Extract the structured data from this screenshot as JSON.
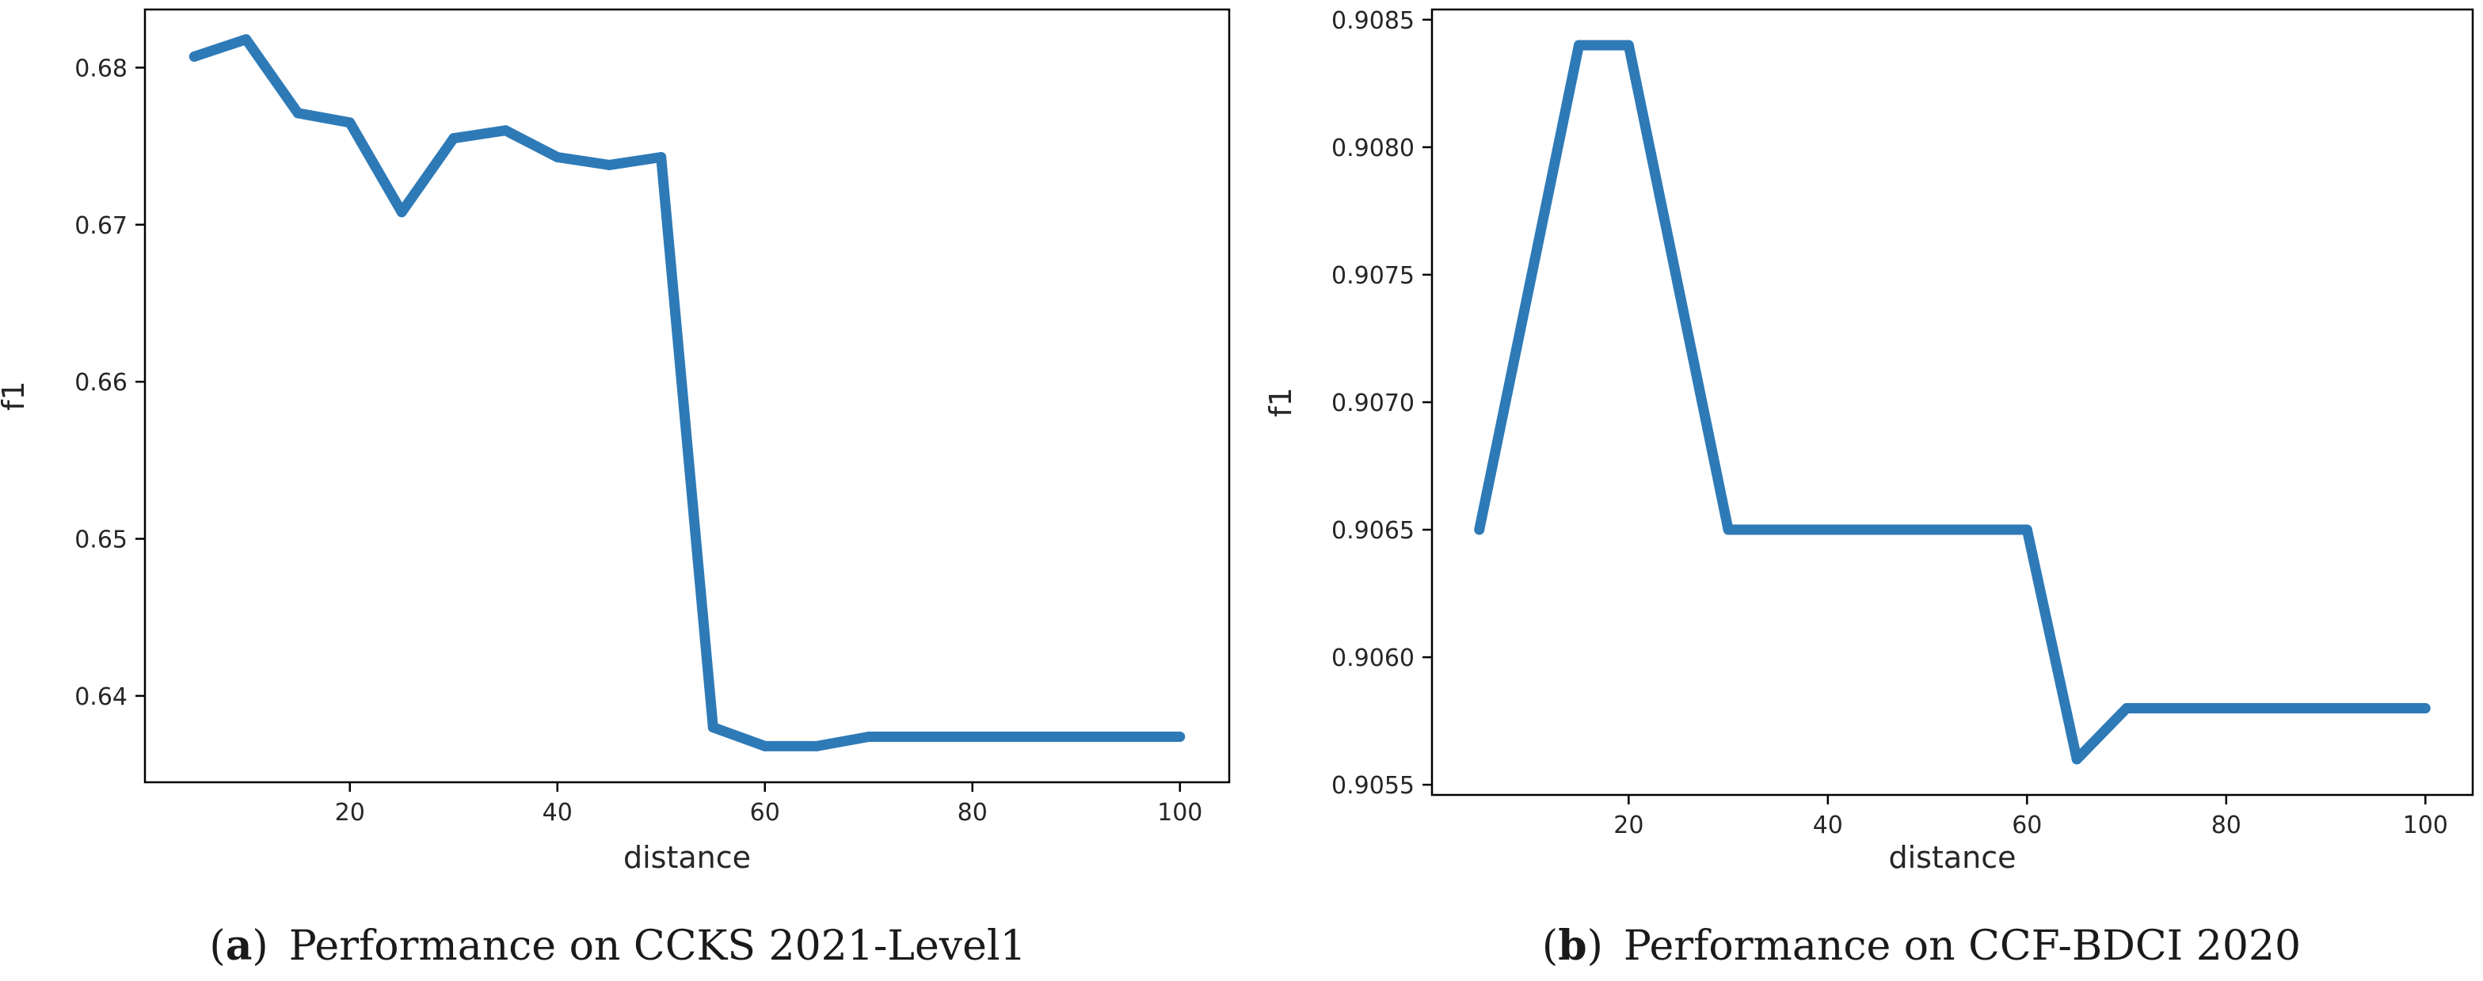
{
  "chart_data": [
    {
      "type": "line",
      "caption_letter": "a",
      "caption_text": "Performance on CCKS 2021-Level1",
      "xlabel": "distance",
      "ylabel": "f1",
      "xlim": [
        0.25,
        104.75
      ],
      "ylim": [
        0.6345,
        0.6837
      ],
      "xticks": [
        20,
        40,
        60,
        80,
        100
      ],
      "yticks": [
        0.64,
        0.65,
        0.66,
        0.67,
        0.68
      ],
      "ytick_labels": [
        "0.64",
        "0.65",
        "0.66",
        "0.67",
        "0.68"
      ],
      "color": "#2e7ab7",
      "grid": false,
      "x": [
        5,
        10,
        15,
        20,
        25,
        30,
        35,
        40,
        45,
        50,
        55,
        60,
        65,
        70,
        75,
        80,
        85,
        90,
        95,
        100
      ],
      "y": [
        0.6807,
        0.6818,
        0.6771,
        0.6765,
        0.6708,
        0.6755,
        0.676,
        0.6743,
        0.6738,
        0.6743,
        0.638,
        0.6368,
        0.6368,
        0.6374,
        0.6374,
        0.6374,
        0.6374,
        0.6374,
        0.6374,
        0.6374
      ]
    },
    {
      "type": "line",
      "caption_letter": "b",
      "caption_text": "Performance on CCF-BDCI 2020",
      "xlabel": "distance",
      "ylabel": "f1",
      "xlim": [
        0.25,
        104.75
      ],
      "ylim": [
        0.90546,
        0.90854
      ],
      "xticks": [
        20,
        40,
        60,
        80,
        100
      ],
      "yticks": [
        0.9055,
        0.906,
        0.9065,
        0.907,
        0.9075,
        0.908,
        0.9085
      ],
      "ytick_labels": [
        "0.9055",
        "0.9060",
        "0.9065",
        "0.9070",
        "0.9075",
        "0.9080",
        "0.9085"
      ],
      "color": "#2e7ab7",
      "grid": false,
      "x": [
        5,
        10,
        15,
        20,
        25,
        30,
        35,
        40,
        45,
        50,
        55,
        60,
        65,
        70,
        75,
        80,
        85,
        90,
        95,
        100
      ],
      "y": [
        0.9065,
        0.90745,
        0.9084,
        0.9084,
        0.90745,
        0.9065,
        0.9065,
        0.9065,
        0.9065,
        0.9065,
        0.9065,
        0.9065,
        0.9056,
        0.9058,
        0.9058,
        0.9058,
        0.9058,
        0.9058,
        0.9058,
        0.9058
      ]
    }
  ]
}
